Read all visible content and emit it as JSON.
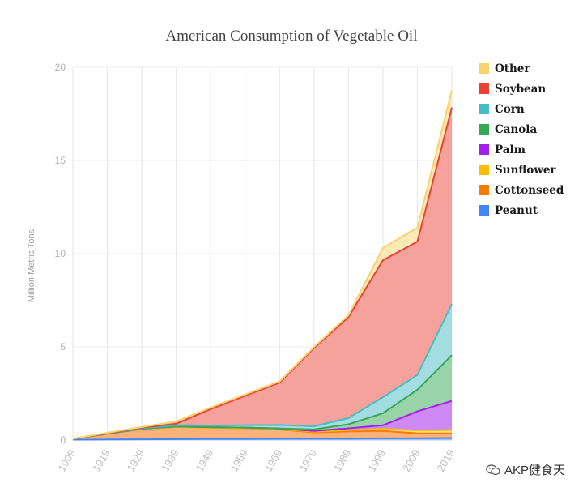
{
  "chart_data": {
    "type": "area",
    "stacked": true,
    "title": "American Consumption of Vegetable Oil",
    "xlabel": "",
    "ylabel": "Million Metric Tons",
    "ylim": [
      0,
      20
    ],
    "yticks": [
      "0",
      "5",
      "10",
      "15",
      "20"
    ],
    "categories": [
      "1909",
      "1919",
      "1929",
      "1939",
      "1949",
      "1959",
      "1969",
      "1979",
      "1989",
      "1999",
      "2009",
      "2019"
    ],
    "legend_position": "right",
    "grid": true,
    "series": [
      {
        "name": "Peanut",
        "color": "#4285f4",
        "fill": "#a0c1fa",
        "values": [
          0.02,
          0.03,
          0.04,
          0.05,
          0.06,
          0.06,
          0.07,
          0.08,
          0.08,
          0.09,
          0.09,
          0.11
        ]
      },
      {
        "name": "Cottonseed",
        "color": "#f57c00",
        "fill": "#fbb27a",
        "values": [
          0.05,
          0.3,
          0.55,
          0.65,
          0.6,
          0.57,
          0.5,
          0.33,
          0.38,
          0.4,
          0.27,
          0.25
        ]
      },
      {
        "name": "Sunflower",
        "color": "#fbbc04",
        "fill": "#fddc85",
        "values": [
          0,
          0,
          0,
          0,
          0,
          0.01,
          0.02,
          0.04,
          0.08,
          0.1,
          0.16,
          0.18
        ]
      },
      {
        "name": "Palm",
        "color": "#a020f0",
        "fill": "#cf89f5",
        "values": [
          0,
          0.01,
          0.02,
          0.03,
          0.03,
          0.03,
          0.03,
          0.04,
          0.09,
          0.2,
          1.02,
          1.56
        ]
      },
      {
        "name": "Canola",
        "color": "#34a853",
        "fill": "#99d3a8",
        "values": [
          0,
          0,
          0,
          0,
          0,
          0,
          0,
          0.08,
          0.22,
          0.65,
          1.16,
          2.45
        ]
      },
      {
        "name": "Corn",
        "color": "#46bdc6",
        "fill": "#a3dde2",
        "values": [
          0,
          0.01,
          0.03,
          0.07,
          0.09,
          0.13,
          0.19,
          0.17,
          0.33,
          0.86,
          0.79,
          2.75
        ]
      },
      {
        "name": "Soybean",
        "color": "#ea4335",
        "fill": "#f4a29b",
        "values": [
          0,
          0.01,
          0.02,
          0.08,
          0.88,
          1.58,
          2.27,
          4.2,
          5.42,
          7.35,
          7.16,
          10.54
        ]
      },
      {
        "name": "Other",
        "color": "#f6d36b",
        "fill": "#faeab8",
        "values": [
          0,
          0.03,
          0.04,
          0.12,
          0.09,
          0.07,
          0.07,
          0.06,
          0.1,
          0.65,
          0.75,
          0.91
        ]
      }
    ],
    "legend": [
      "Other",
      "Soybean",
      "Corn",
      "Canola",
      "Palm",
      "Sunflower",
      "Cottonseed",
      "Peanut"
    ]
  },
  "watermark": {
    "text": "AKP健食天",
    "icon": "wechat-icon"
  }
}
